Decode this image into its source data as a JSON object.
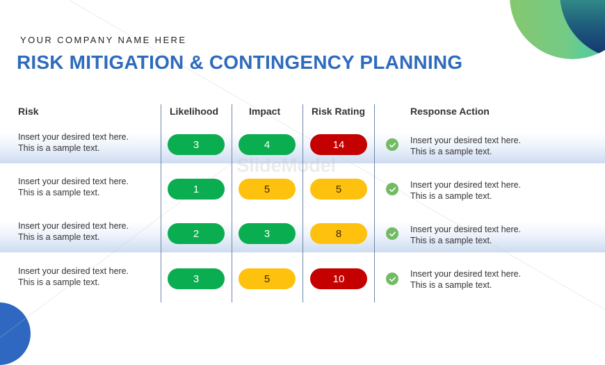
{
  "header": {
    "company": "YOUR COMPANY NAME HERE",
    "title": "RISK MITIGATION & CONTINGENCY PLANNING"
  },
  "table": {
    "columns": [
      "Risk",
      "Likelihood",
      "Impact",
      "Risk Rating",
      "Response Action"
    ],
    "rows": [
      {
        "risk": [
          "Insert your desired text here.",
          "This is a sample text."
        ],
        "likelihood": {
          "value": "3",
          "level": "green"
        },
        "impact": {
          "value": "4",
          "level": "green"
        },
        "rating": {
          "value": "14",
          "level": "red"
        },
        "response": [
          "Insert your desired text here.",
          "This is a sample text."
        ],
        "icon": "check-circle-icon"
      },
      {
        "risk": [
          "Insert your desired text here.",
          "This is a sample text."
        ],
        "likelihood": {
          "value": "1",
          "level": "green"
        },
        "impact": {
          "value": "5",
          "level": "yellow"
        },
        "rating": {
          "value": "5",
          "level": "yellow"
        },
        "response": [
          "Insert your desired text here.",
          "This is a sample text."
        ],
        "icon": "check-circle-icon"
      },
      {
        "risk": [
          "Insert your desired text here.",
          "This is a sample text."
        ],
        "likelihood": {
          "value": "2",
          "level": "green"
        },
        "impact": {
          "value": "3",
          "level": "green"
        },
        "rating": {
          "value": "8",
          "level": "yellow"
        },
        "response": [
          "Insert your desired text here.",
          "This is a sample text."
        ],
        "icon": "check-circle-icon"
      },
      {
        "risk": [
          "Insert your desired text here.",
          "This is a sample text."
        ],
        "likelihood": {
          "value": "3",
          "level": "green"
        },
        "impact": {
          "value": "5",
          "level": "yellow"
        },
        "rating": {
          "value": "10",
          "level": "red"
        },
        "response": [
          "Insert your desired text here.",
          "This is a sample text."
        ],
        "icon": "check-circle-icon"
      }
    ]
  },
  "colors": {
    "title": "#2f6bbd",
    "green": "#0aad4f",
    "yellow": "#fec10e",
    "red": "#c40000",
    "check": "#72bb63"
  },
  "watermark": "SlideModel"
}
